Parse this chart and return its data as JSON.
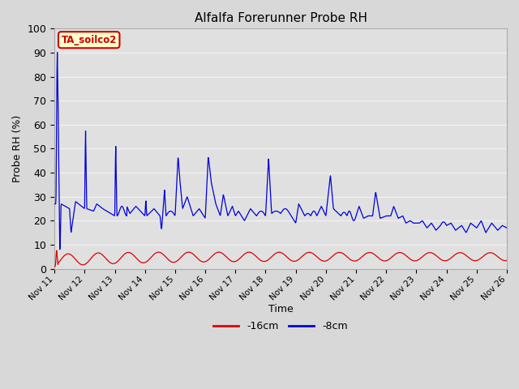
{
  "title": "Alfalfa Forerunner Probe RH",
  "xlabel": "Time",
  "ylabel": "Probe RH (%)",
  "ylim": [
    0,
    100
  ],
  "bg_color": "#d8d8d8",
  "plot_bg_color": "#e0e0e0",
  "annotation_text": "TA_soilco2",
  "annotation_bg": "#ffffcc",
  "annotation_border": "#cc0000",
  "legend_labels": [
    "-16cm",
    "-8cm"
  ],
  "legend_colors": [
    "#dd0000",
    "#0000dd"
  ],
  "x_tick_labels": [
    "Nov 11",
    "Nov 12",
    "Nov 13",
    "Nov 14",
    "Nov 15",
    "Nov 16",
    "Nov 17",
    "Nov 18",
    "Nov 19",
    "Nov 20",
    "Nov 21",
    "Nov 22",
    "Nov 23",
    "Nov 24",
    "Nov 25",
    "Nov 26"
  ],
  "line_blue_color": "#0000dd",
  "line_red_color": "#dd0000",
  "grid_color": "#f0f0f0",
  "grid_linewidth": 1.0,
  "n_days": 15
}
